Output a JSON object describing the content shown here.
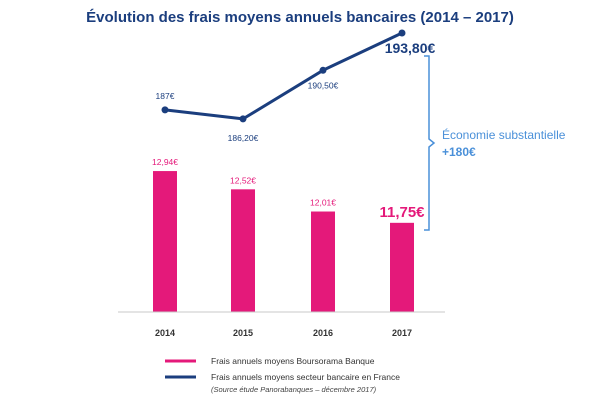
{
  "chart_data": {
    "type": "bar+line",
    "title": "Évolution des frais moyens annuels bancaires (2014 – 2017)",
    "categories": [
      "2014",
      "2015",
      "2016",
      "2017"
    ],
    "series": [
      {
        "name": "Frais annuels moyens Boursorama Banque",
        "type": "bar",
        "values": [
          12.94,
          12.52,
          12.01,
          11.75
        ],
        "labels": [
          "12,94€",
          "12,52€",
          "12,01€",
          "11,75€"
        ],
        "color": "#e4197a"
      },
      {
        "name": "Frais annuels moyens secteur bancaire en France",
        "type": "line",
        "values": [
          187,
          186.2,
          190.5,
          193.8
        ],
        "labels": [
          "187€",
          "186,20€",
          "190,50€",
          "193,80€"
        ],
        "color": "#1b3e7e"
      }
    ],
    "annotation": {
      "text": "Économie substantielle",
      "value": "+180€",
      "color": "#4a90d9"
    },
    "source": "(Source étude Panorabanques – décembre 2017)",
    "legend_position": "bottom-center",
    "grid": false
  }
}
